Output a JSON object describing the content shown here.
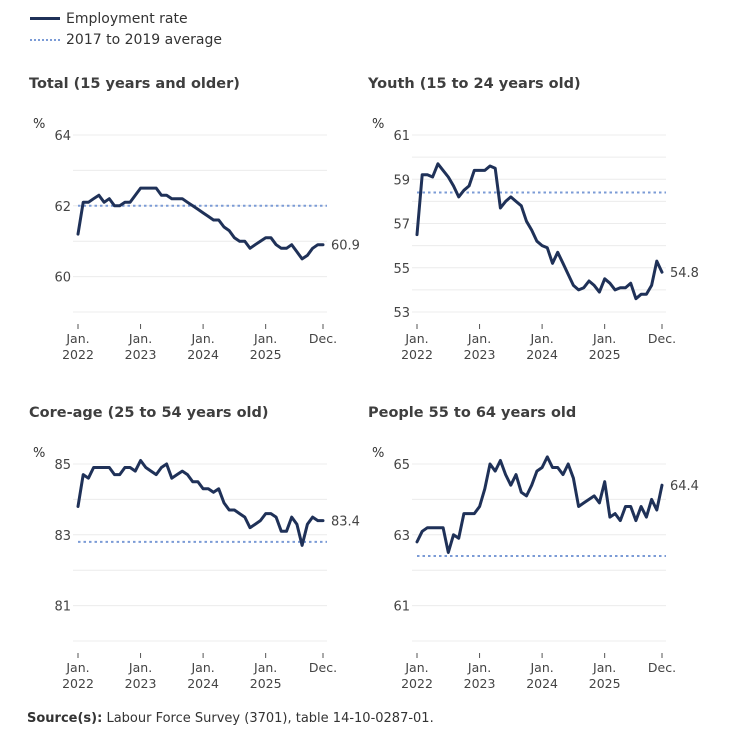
{
  "legend": {
    "items": [
      {
        "label": "Employment rate",
        "style": "solid",
        "color": "#1f3158"
      },
      {
        "label": "2017 to 2019 average",
        "style": "dotted",
        "color": "#7b9bd6"
      }
    ]
  },
  "source": {
    "label": "Source(s):",
    "text": "Labour Force Survey (3701), table 14-10-0287-01."
  },
  "chart_data": [
    {
      "type": "line",
      "title": "Total (15 years and older)",
      "ylabel": "%",
      "ylim": [
        59,
        64
      ],
      "yticks": [
        64,
        62,
        60
      ],
      "ygrid": [
        64,
        63,
        62,
        61,
        60,
        59
      ],
      "x_tick_labels": [
        [
          "Jan.",
          "2022"
        ],
        [
          "Jan.",
          "2023"
        ],
        [
          "Jan.",
          "2024"
        ],
        [
          "Jan.",
          "2025"
        ],
        [
          "Dec.",
          ""
        ]
      ],
      "x_tick_months": [
        0,
        12,
        24,
        36,
        47
      ],
      "x_start": "2022-01",
      "x_end": "2025-12",
      "average": 62.0,
      "last_label": "60.9",
      "values": [
        61.2,
        62.1,
        62.1,
        62.2,
        62.3,
        62.1,
        62.2,
        62.0,
        62.0,
        62.1,
        62.1,
        62.3,
        62.5,
        62.5,
        62.5,
        62.5,
        62.3,
        62.3,
        62.2,
        62.2,
        62.2,
        62.1,
        62.0,
        61.9,
        61.8,
        61.7,
        61.6,
        61.6,
        61.4,
        61.3,
        61.1,
        61.0,
        61.0,
        60.8,
        60.9,
        61.0,
        61.1,
        61.1,
        60.9,
        60.8,
        60.8,
        60.9,
        60.7,
        60.5,
        60.6,
        60.8,
        60.9,
        60.9
      ]
    },
    {
      "type": "line",
      "title": "Youth (15 to 24 years old)",
      "ylabel": "%",
      "ylim": [
        53,
        61
      ],
      "yticks": [
        61,
        59,
        57,
        55,
        53
      ],
      "ygrid": [
        61,
        60,
        59,
        58,
        57,
        56,
        55,
        54,
        53
      ],
      "x_tick_labels": [
        [
          "Jan.",
          "2022"
        ],
        [
          "Jan.",
          "2023"
        ],
        [
          "Jan.",
          "2024"
        ],
        [
          "Jan.",
          "2025"
        ],
        [
          "Dec.",
          ""
        ]
      ],
      "x_tick_months": [
        0,
        12,
        24,
        36,
        47
      ],
      "x_start": "2022-01",
      "x_end": "2025-12",
      "average": 58.4,
      "last_label": "54.8",
      "values": [
        56.5,
        59.2,
        59.2,
        59.1,
        59.7,
        59.4,
        59.1,
        58.7,
        58.2,
        58.5,
        58.7,
        59.4,
        59.4,
        59.4,
        59.6,
        59.5,
        57.7,
        58.0,
        58.2,
        58.0,
        57.8,
        57.1,
        56.7,
        56.2,
        56.0,
        55.9,
        55.2,
        55.7,
        55.2,
        54.7,
        54.2,
        54.0,
        54.1,
        54.4,
        54.2,
        53.9,
        54.5,
        54.3,
        54.0,
        54.1,
        54.1,
        54.3,
        53.6,
        53.8,
        53.8,
        54.2,
        55.3,
        54.8
      ]
    },
    {
      "type": "line",
      "title": "Core-age (25 to 54 years old)",
      "ylabel": "%",
      "ylim": [
        80,
        85
      ],
      "yticks": [
        85,
        83,
        81
      ],
      "ygrid": [
        85,
        84,
        83,
        82,
        81,
        80
      ],
      "x_tick_labels": [
        [
          "Jan.",
          "2022"
        ],
        [
          "Jan.",
          "2023"
        ],
        [
          "Jan.",
          "2024"
        ],
        [
          "Jan.",
          "2025"
        ],
        [
          "Dec.",
          ""
        ]
      ],
      "x_tick_months": [
        0,
        12,
        24,
        36,
        47
      ],
      "x_start": "2022-01",
      "x_end": "2025-12",
      "average": 82.8,
      "last_label": "83.4",
      "values": [
        83.8,
        84.7,
        84.6,
        84.9,
        84.9,
        84.9,
        84.9,
        84.7,
        84.7,
        84.9,
        84.9,
        84.8,
        85.1,
        84.9,
        84.8,
        84.7,
        84.9,
        85.0,
        84.6,
        84.7,
        84.8,
        84.7,
        84.5,
        84.5,
        84.3,
        84.3,
        84.2,
        84.3,
        83.9,
        83.7,
        83.7,
        83.6,
        83.5,
        83.2,
        83.3,
        83.4,
        83.6,
        83.6,
        83.5,
        83.1,
        83.1,
        83.5,
        83.3,
        82.7,
        83.3,
        83.5,
        83.4,
        83.4
      ]
    },
    {
      "type": "line",
      "title": "People 55 to 64 years old",
      "ylabel": "%",
      "ylim": [
        60,
        65
      ],
      "yticks": [
        65,
        63,
        61
      ],
      "ygrid": [
        65,
        64,
        63,
        62,
        61,
        60
      ],
      "x_tick_labels": [
        [
          "Jan.",
          "2022"
        ],
        [
          "Jan.",
          "2023"
        ],
        [
          "Jan.",
          "2024"
        ],
        [
          "Jan.",
          "2025"
        ],
        [
          "Dec.",
          ""
        ]
      ],
      "x_tick_months": [
        0,
        12,
        24,
        36,
        47
      ],
      "x_start": "2022-01",
      "x_end": "2025-12",
      "average": 62.4,
      "last_label": "64.4",
      "values": [
        62.8,
        63.1,
        63.2,
        63.2,
        63.2,
        63.2,
        62.5,
        63.0,
        62.9,
        63.6,
        63.6,
        63.6,
        63.8,
        64.3,
        65.0,
        64.8,
        65.1,
        64.7,
        64.4,
        64.7,
        64.2,
        64.1,
        64.4,
        64.8,
        64.9,
        65.2,
        64.9,
        64.9,
        64.7,
        65.0,
        64.6,
        63.8,
        63.9,
        64.0,
        64.1,
        63.9,
        64.5,
        63.5,
        63.6,
        63.4,
        63.8,
        63.8,
        63.4,
        63.8,
        63.5,
        64.0,
        63.7,
        64.4
      ]
    }
  ]
}
